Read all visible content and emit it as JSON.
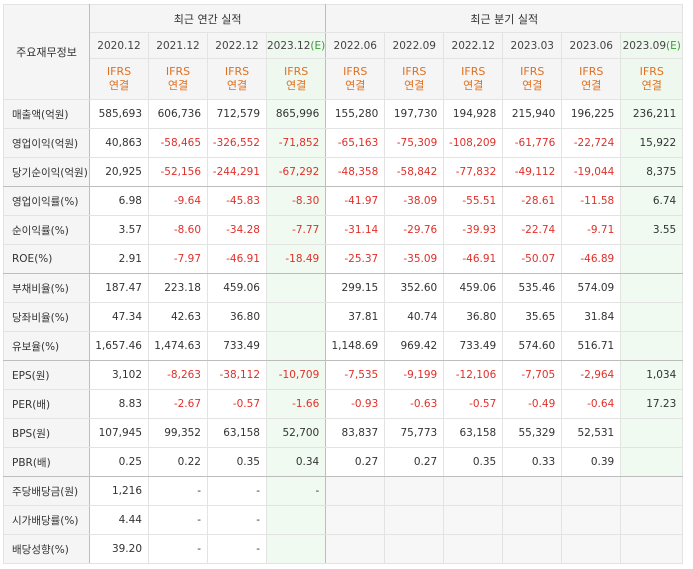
{
  "header": {
    "label_col": "주요재무정보",
    "annual_group": "최근 연간 실적",
    "quarter_group": "최근 분기 실적",
    "periods": [
      {
        "period": "2020.12",
        "est": ""
      },
      {
        "period": "2021.12",
        "est": ""
      },
      {
        "period": "2022.12",
        "est": ""
      },
      {
        "period": "2023.12",
        "est": "(E)"
      },
      {
        "period": "2022.06",
        "est": ""
      },
      {
        "period": "2022.09",
        "est": ""
      },
      {
        "period": "2022.12",
        "est": ""
      },
      {
        "period": "2023.03",
        "est": ""
      },
      {
        "period": "2023.06",
        "est": ""
      },
      {
        "period": "2023.09",
        "est": "(E)"
      }
    ],
    "ifrs_line1": "IFRS",
    "ifrs_line2": "연결"
  },
  "colors": {
    "negative": "#e0302a",
    "ifrs_orange": "#e07020",
    "estimate_bg": "#eef8ee",
    "header_bg": "#f5f5f5"
  },
  "rows": [
    {
      "label": "매출액(억원)",
      "values": [
        "585,693",
        "606,736",
        "712,579",
        "865,996",
        "155,280",
        "197,730",
        "194,928",
        "215,940",
        "196,225",
        "236,211"
      ]
    },
    {
      "label": "영업이익(억원)",
      "values": [
        "40,863",
        "-58,465",
        "-326,552",
        "-71,852",
        "-65,163",
        "-75,309",
        "-108,209",
        "-61,776",
        "-22,724",
        "15,922"
      ]
    },
    {
      "label": "당기순이익(억원)",
      "values": [
        "20,925",
        "-52,156",
        "-244,291",
        "-67,292",
        "-48,358",
        "-58,842",
        "-77,832",
        "-49,112",
        "-19,044",
        "8,375"
      ]
    },
    {
      "label": "영업이익률(%)",
      "values": [
        "6.98",
        "-9.64",
        "-45.83",
        "-8.30",
        "-41.97",
        "-38.09",
        "-55.51",
        "-28.61",
        "-11.58",
        "6.74"
      ]
    },
    {
      "label": "순이익률(%)",
      "values": [
        "3.57",
        "-8.60",
        "-34.28",
        "-7.77",
        "-31.14",
        "-29.76",
        "-39.93",
        "-22.74",
        "-9.71",
        "3.55"
      ]
    },
    {
      "label": "ROE(%)",
      "values": [
        "2.91",
        "-7.97",
        "-46.91",
        "-18.49",
        "-25.37",
        "-35.09",
        "-46.91",
        "-50.07",
        "-46.89",
        ""
      ]
    },
    {
      "label": "부채비율(%)",
      "values": [
        "187.47",
        "223.18",
        "459.06",
        "",
        "299.15",
        "352.60",
        "459.06",
        "535.46",
        "574.09",
        ""
      ]
    },
    {
      "label": "당좌비율(%)",
      "values": [
        "47.34",
        "42.63",
        "36.80",
        "",
        "37.81",
        "40.74",
        "36.80",
        "35.65",
        "31.84",
        ""
      ]
    },
    {
      "label": "유보율(%)",
      "values": [
        "1,657.46",
        "1,474.63",
        "733.49",
        "",
        "1,148.69",
        "969.42",
        "733.49",
        "574.60",
        "516.71",
        ""
      ]
    },
    {
      "label": "EPS(원)",
      "values": [
        "3,102",
        "-8,263",
        "-38,112",
        "-10,709",
        "-7,535",
        "-9,199",
        "-12,106",
        "-7,705",
        "-2,964",
        "1,034"
      ]
    },
    {
      "label": "PER(배)",
      "values": [
        "8.83",
        "-2.67",
        "-0.57",
        "-1.66",
        "-0.93",
        "-0.63",
        "-0.57",
        "-0.49",
        "-0.64",
        "17.23"
      ]
    },
    {
      "label": "BPS(원)",
      "values": [
        "107,945",
        "99,352",
        "63,158",
        "52,700",
        "83,837",
        "75,773",
        "63,158",
        "55,329",
        "52,531",
        ""
      ]
    },
    {
      "label": "PBR(배)",
      "values": [
        "0.25",
        "0.22",
        "0.35",
        "0.34",
        "0.27",
        "0.27",
        "0.35",
        "0.33",
        "0.39",
        ""
      ]
    },
    {
      "label": "주당배당금(원)",
      "values": [
        "1,216",
        "-",
        "-",
        "-",
        "",
        "",
        "",
        "",
        "",
        ""
      ]
    },
    {
      "label": "시가배당률(%)",
      "values": [
        "4.44",
        "-",
        "-",
        "",
        "",
        "",
        "",
        "",
        "",
        ""
      ]
    },
    {
      "label": "배당성향(%)",
      "values": [
        "39.20",
        "-",
        "-",
        "",
        "",
        "",
        "",
        "",
        "",
        ""
      ]
    }
  ]
}
